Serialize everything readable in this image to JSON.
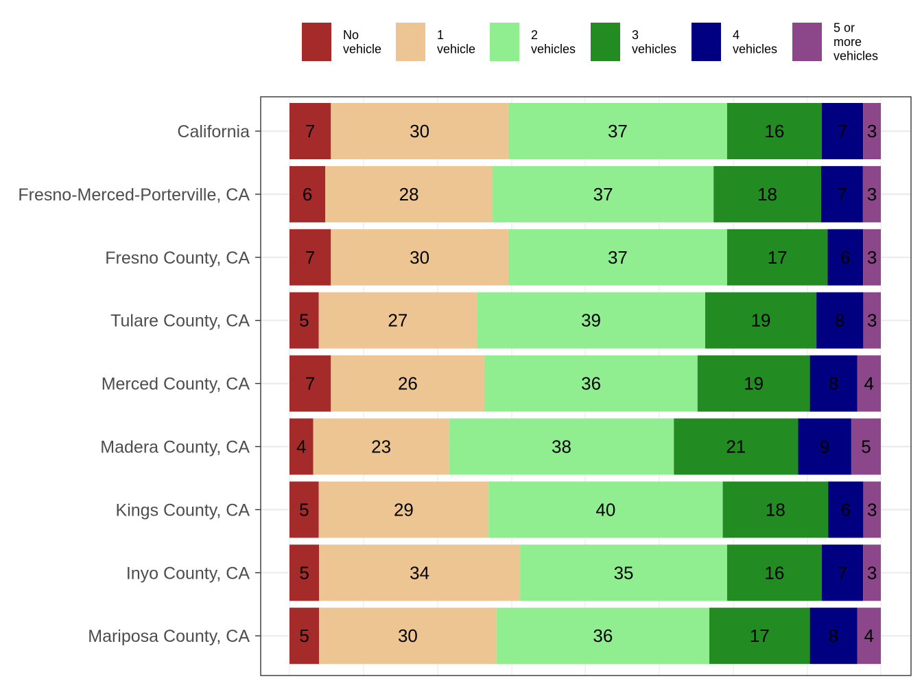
{
  "chart_data": {
    "type": "bar",
    "orientation": "horizontal",
    "stacked": true,
    "grid": true,
    "legend_position": "top",
    "categories": [
      "California",
      "Fresno-Merced-Porterville, CA",
      "Fresno County, CA",
      "Tulare County, CA",
      "Merced County, CA",
      "Madera County, CA",
      "Kings County, CA",
      "Inyo County, CA",
      "Mariposa County, CA"
    ],
    "series": [
      {
        "name": "No vehicle",
        "legend_lines": [
          "No",
          "vehicle"
        ],
        "color": "#A52A2A",
        "values": [
          7,
          6,
          7,
          5,
          7,
          4,
          5,
          5,
          5
        ]
      },
      {
        "name": "1 vehicle",
        "legend_lines": [
          "1",
          "vehicle"
        ],
        "color": "#EDC593",
        "values": [
          30,
          28,
          30,
          27,
          26,
          23,
          29,
          34,
          30
        ]
      },
      {
        "name": "2 vehicles",
        "legend_lines": [
          "2",
          "vehicles"
        ],
        "color": "#90EE90",
        "values": [
          37,
          37,
          37,
          39,
          36,
          38,
          40,
          35,
          36
        ]
      },
      {
        "name": "3 vehicles",
        "legend_lines": [
          "3",
          "vehicles"
        ],
        "color": "#228B22",
        "values": [
          16,
          18,
          17,
          19,
          19,
          21,
          18,
          16,
          17
        ]
      },
      {
        "name": "4 vehicles",
        "legend_lines": [
          "4",
          "vehicles"
        ],
        "color": "#000080",
        "values": [
          7,
          7,
          6,
          8,
          8,
          9,
          6,
          7,
          8
        ]
      },
      {
        "name": "5 or more vehicles",
        "legend_lines": [
          "5 or",
          "more",
          "vehicles"
        ],
        "color": "#8B4789",
        "values": [
          3,
          3,
          3,
          3,
          4,
          5,
          3,
          3,
          4
        ]
      }
    ]
  }
}
